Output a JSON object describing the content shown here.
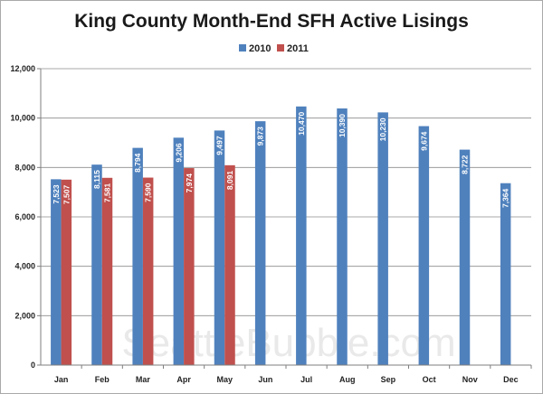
{
  "chart_data": {
    "type": "bar",
    "title": "King County Month-End SFH Active Lisings",
    "xlabel": "",
    "ylabel": "",
    "categories": [
      "Jan",
      "Feb",
      "Mar",
      "Apr",
      "May",
      "Jun",
      "Jul",
      "Aug",
      "Sep",
      "Oct",
      "Nov",
      "Dec"
    ],
    "series": [
      {
        "name": "2010",
        "color": "#4f81bd",
        "values": [
          7523,
          8115,
          8794,
          9206,
          9497,
          9873,
          10470,
          10390,
          10230,
          9674,
          8722,
          7364
        ],
        "labels": [
          "7,523",
          "8,115",
          "8,794",
          "9,206",
          "9,497",
          "9,873",
          "10,470",
          "10,390",
          "10,230",
          "9,674",
          "8,722",
          "7,364"
        ]
      },
      {
        "name": "2011",
        "color": "#c0504d",
        "values": [
          7507,
          7581,
          7590,
          7974,
          8091,
          null,
          null,
          null,
          null,
          null,
          null,
          null
        ],
        "labels": [
          "7,507",
          "7,581",
          "7,590",
          "7,974",
          "8,091",
          null,
          null,
          null,
          null,
          null,
          null,
          null
        ]
      }
    ],
    "ylim": [
      0,
      12000
    ],
    "yticks": [
      0,
      2000,
      4000,
      6000,
      8000,
      10000,
      12000
    ],
    "ytick_labels": [
      "0",
      "2,000",
      "4,000",
      "6,000",
      "8,000",
      "10,000",
      "12,000"
    ],
    "grid": true,
    "legend": "top-center"
  },
  "watermark": "SeattleBubble.com"
}
